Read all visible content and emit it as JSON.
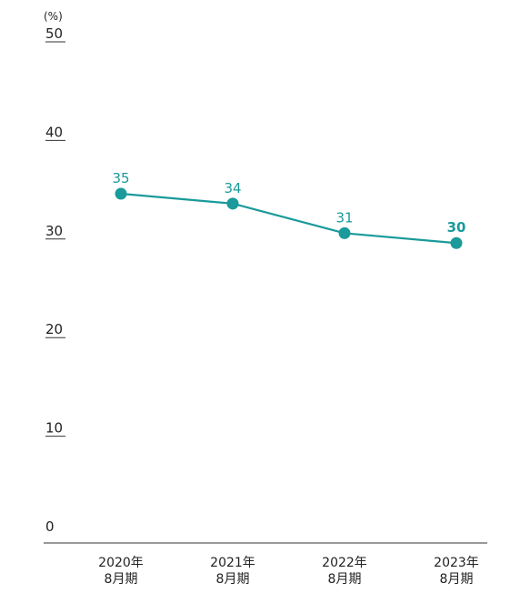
{
  "chart_data": {
    "type": "line",
    "unit_label": "(%)",
    "title": "",
    "xlabel": "",
    "ylabel": "",
    "categories": [
      {
        "line1": "2020年",
        "line2": "8月期"
      },
      {
        "line1": "2021年",
        "line2": "8月期"
      },
      {
        "line1": "2022年",
        "line2": "8月期"
      },
      {
        "line1": "2023年",
        "line2": "8月期"
      }
    ],
    "series": [
      {
        "values": [
          34.5,
          33.5,
          30.5,
          29.5
        ],
        "labels": [
          "35",
          "34",
          "31",
          "30"
        ],
        "color": "#1a9a9a"
      }
    ],
    "y_ticks": [
      "0",
      "10",
      "20",
      "30",
      "40",
      "50"
    ],
    "ylim": [
      0,
      50
    ],
    "grid": false,
    "highlight_last_label": true
  }
}
